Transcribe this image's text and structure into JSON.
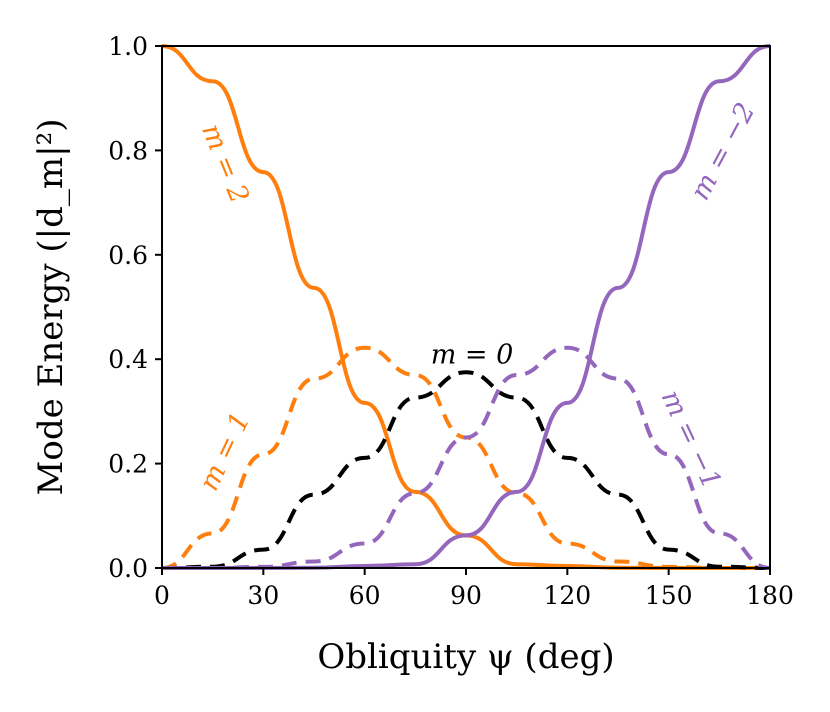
{
  "chart_data": {
    "type": "line",
    "xlabel": "Obliquity ψ (deg)",
    "ylabel": "Mode Energy (|d_m|²)",
    "xlim": [
      0,
      180
    ],
    "ylim": [
      0,
      1
    ],
    "x_ticks": [
      0,
      30,
      60,
      90,
      120,
      150,
      180
    ],
    "y_ticks": [
      0.0,
      0.2,
      0.4,
      0.6,
      0.8,
      1.0
    ],
    "x_tick_labels": [
      "0",
      "30",
      "60",
      "90",
      "120",
      "150",
      "180"
    ],
    "y_tick_labels": [
      "0.0",
      "0.2",
      "0.4",
      "0.6",
      "0.8",
      "1.0"
    ],
    "grid": false,
    "x": [
      0,
      15,
      30,
      45,
      60,
      75,
      90,
      105,
      120,
      135,
      150,
      165,
      180
    ],
    "series": [
      {
        "name": "m = 2",
        "label": "m = 2",
        "color": "#ff7f0e",
        "dash": "solid",
        "values": [
          1.0,
          0.9324,
          0.7585,
          0.5366,
          0.3164,
          0.1459,
          0.0625,
          0.0072,
          0.0039,
          0.0005,
          0.0001,
          0.0,
          0.0
        ]
      },
      {
        "name": "m = 1",
        "label": "m = 1",
        "color": "#ff7f0e",
        "dash": "dashed",
        "values": [
          0.0,
          0.0664,
          0.2178,
          0.3626,
          0.4219,
          0.3697,
          0.25,
          0.1435,
          0.0469,
          0.0125,
          0.0021,
          0.0001,
          0.0
        ]
      },
      {
        "name": "m = 0",
        "label": "m = 0",
        "color": "#000000",
        "dash": "dashed",
        "values": [
          0.0,
          0.0025,
          0.0352,
          0.1406,
          0.2109,
          0.3264,
          0.375,
          0.3264,
          0.2109,
          0.1406,
          0.0352,
          0.0025,
          0.0
        ]
      },
      {
        "name": "m = -1",
        "label": "m = −1",
        "color": "#9467bd",
        "dash": "dashed",
        "values": [
          0.0,
          0.0001,
          0.0021,
          0.0125,
          0.0469,
          0.1435,
          0.25,
          0.3697,
          0.4219,
          0.3626,
          0.2178,
          0.0664,
          0.0
        ]
      },
      {
        "name": "m = -2",
        "label": "m = −2",
        "color": "#9467bd",
        "dash": "solid",
        "values": [
          0.0,
          0.0,
          0.0001,
          0.0005,
          0.0039,
          0.0072,
          0.0625,
          0.1459,
          0.3164,
          0.5366,
          0.7585,
          0.9324,
          1.0
        ]
      }
    ]
  }
}
